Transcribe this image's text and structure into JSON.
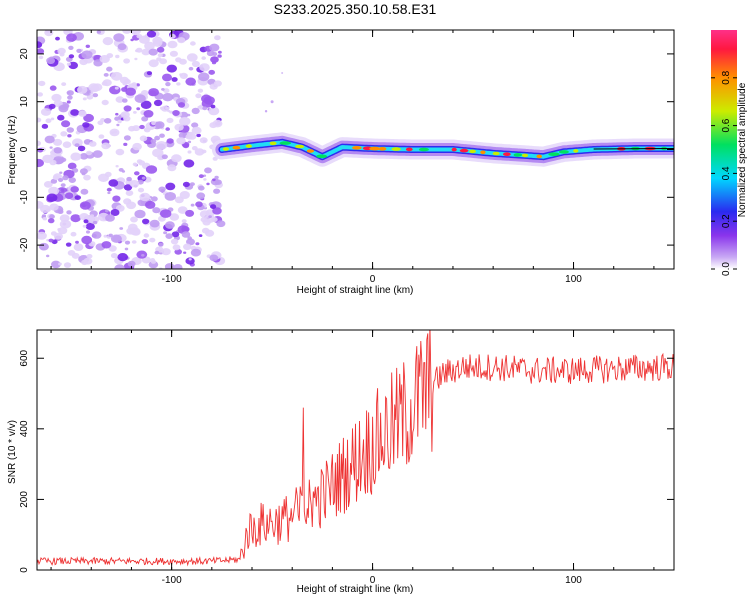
{
  "title": "S233.2025.350.10.58.E31",
  "chart_data": [
    {
      "type": "heatmap",
      "name": "spectrogram",
      "xlabel": "Height of straight line (km)",
      "ylabel": "Frequency (Hz)",
      "xlim": [
        -167,
        150
      ],
      "ylim": [
        -25,
        25
      ],
      "xticks": [
        -100,
        0,
        100
      ],
      "yticks": [
        -20,
        -10,
        0,
        10,
        20
      ],
      "colorbar": {
        "label": "Normalized spectral amplitude",
        "range": [
          0,
          1
        ],
        "ticks": [
          0.0,
          0.2,
          0.4,
          0.6,
          0.8
        ],
        "tick_labels": [
          "0.0",
          "0.2",
          "0.4",
          "0.6",
          "0.8"
        ],
        "colors": [
          "#ffffff",
          "#c8a8f4",
          "#8a35ec",
          "#2a2af0",
          "#00d8ff",
          "#00e060",
          "#ccec00",
          "#ff9000",
          "#ff1840",
          "#ff3088"
        ]
      },
      "noise_region_x": [
        -167,
        -75
      ],
      "signal_ridge": {
        "x": [
          -75,
          -60,
          -45,
          -35,
          -25,
          -15,
          0,
          20,
          40,
          60,
          75,
          85,
          95,
          110,
          130,
          150
        ],
        "freq": [
          0,
          0.8,
          1.5,
          0.5,
          -1.5,
          0.5,
          0.2,
          0,
          0,
          -0.8,
          -1.2,
          -1.5,
          -0.5,
          0,
          0.2,
          0.2
        ]
      }
    },
    {
      "type": "line",
      "name": "snr",
      "xlabel": "Height of straight line (km)",
      "ylabel": "SNR (10 * v/v)",
      "xlim": [
        -167,
        150
      ],
      "ylim": [
        0,
        680
      ],
      "xticks": [
        -100,
        0,
        100
      ],
      "yticks": [
        0,
        200,
        400,
        600
      ],
      "color": "#ee3333",
      "x": [
        -167,
        -140,
        -120,
        -100,
        -80,
        -66,
        -62,
        -55,
        -45,
        -35,
        -25,
        -15,
        -5,
        5,
        15,
        25,
        35,
        45,
        60,
        80,
        100,
        120,
        150
      ],
      "y": [
        25,
        25,
        25,
        25,
        25,
        30,
        110,
        130,
        140,
        170,
        210,
        270,
        330,
        380,
        430,
        500,
        555,
        575,
        575,
        565,
        565,
        570,
        575
      ]
    }
  ]
}
